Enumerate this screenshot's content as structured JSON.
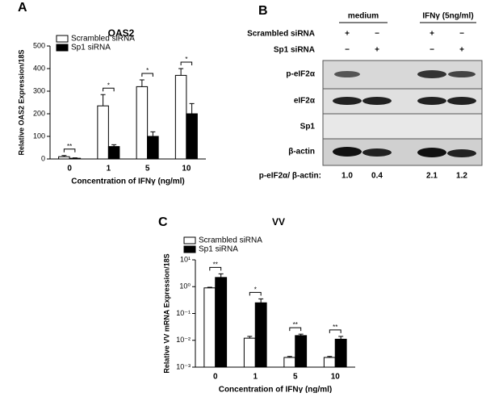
{
  "chart_data": [
    {
      "type": "bar",
      "panel": "A",
      "title": "OAS2",
      "y_label": "Relative OAS2 Expression/18S",
      "x_label": "Concentration of IFNγ (ng/ml)",
      "categories": [
        "0",
        "1",
        "5",
        "10"
      ],
      "series": [
        {
          "name": "Scrambled siRNA",
          "color": "#ffffff",
          "values": [
            10,
            235,
            320,
            370
          ],
          "errors": [
            5,
            50,
            30,
            30
          ]
        },
        {
          "name": "Sp1 siRNA",
          "color": "#000000",
          "values": [
            3,
            55,
            100,
            200
          ],
          "errors": [
            2,
            8,
            20,
            45
          ]
        }
      ],
      "annotations": [
        "**",
        "*",
        "*",
        "*"
      ],
      "ylim": [
        0,
        500
      ],
      "yticks": [
        0,
        100,
        200,
        300,
        400,
        500
      ],
      "log_scale": false
    },
    {
      "type": "bar",
      "panel": "C",
      "title": "VV",
      "y_label": "Relative VV mRNA Expression/18S",
      "x_label": "Concentration of IFNγ (ng/ml)",
      "categories": [
        "0",
        "1",
        "5",
        "10"
      ],
      "series": [
        {
          "name": "Scrambled siRNA",
          "color": "#ffffff",
          "values": [
            0.9,
            0.012,
            0.0023,
            0.0023
          ],
          "errors": [
            0.05,
            0.002,
            0.0002,
            0.0002
          ]
        },
        {
          "name": "Sp1 siRNA",
          "color": "#000000",
          "values": [
            2.2,
            0.25,
            0.015,
            0.011
          ],
          "errors": [
            0.8,
            0.1,
            0.002,
            0.003
          ]
        }
      ],
      "annotations": [
        "**",
        "*",
        "**",
        "**"
      ],
      "ylim": [
        0.001,
        10
      ],
      "yticks": [
        {
          "value": 0.001,
          "label": "10⁻³"
        },
        {
          "value": 0.01,
          "label": "10⁻²"
        },
        {
          "value": 0.1,
          "label": "10⁻¹"
        },
        {
          "value": 1,
          "label": "10⁰"
        },
        {
          "value": 10,
          "label": "10¹"
        }
      ],
      "log_scale": true
    }
  ],
  "blot": {
    "panel": "B",
    "groups": [
      "medium",
      "IFNγ (5ng/ml)"
    ],
    "treatments": [
      {
        "name": "Scrambled siRNA",
        "signs": [
          "+",
          "−",
          "+",
          "−"
        ]
      },
      {
        "name": "Sp1 siRNA",
        "signs": [
          "−",
          "+",
          "−",
          "+"
        ]
      }
    ],
    "bands": [
      "p-eIF2α",
      "eIF2α",
      "Sp1",
      "β-actin"
    ],
    "ratio_label": "p-eIF2α/ β-actin:",
    "ratios": [
      "1.0",
      "0.4",
      "2.1",
      "1.2"
    ]
  }
}
